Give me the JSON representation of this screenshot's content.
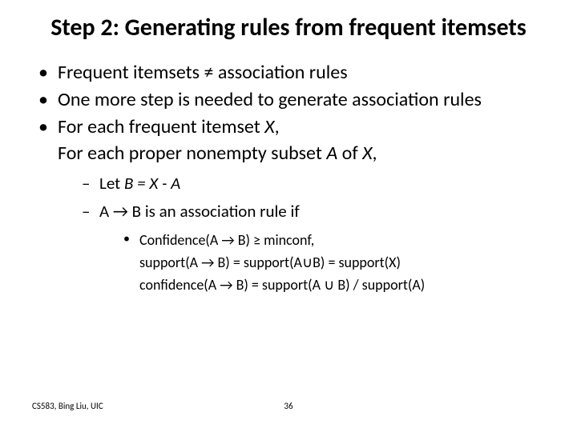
{
  "title": "Step 2: Generating rules from frequent itemsets",
  "bullets": {
    "b1": "Frequent itemsets ≠ association rules",
    "b2": "One more step is needed to generate association rules",
    "b3a": "For each frequent itemset ",
    "b3a_ital": "X",
    "b3a_tail": ",",
    "b3b": "For each proper nonempty subset ",
    "b3b_italA": "A",
    "b3b_mid": " of ",
    "b3b_italX": "X",
    "b3b_tail": ","
  },
  "level2": {
    "l1_pre": "Let ",
    "l1_ital": "B = X - A",
    "l2_pre": "A ",
    "l2_arrow": "→",
    "l2_post": " B is an association rule if"
  },
  "level3": {
    "l1": "Confidence(A → B) ≥ minconf,",
    "l2": "support(A → B) = support(A∪B) = support(X)",
    "l3": "confidence(A → B) = support(A ∪ B) / support(A)"
  },
  "footer": {
    "left": "CS583, Bing Liu, UIC",
    "page": "36"
  }
}
